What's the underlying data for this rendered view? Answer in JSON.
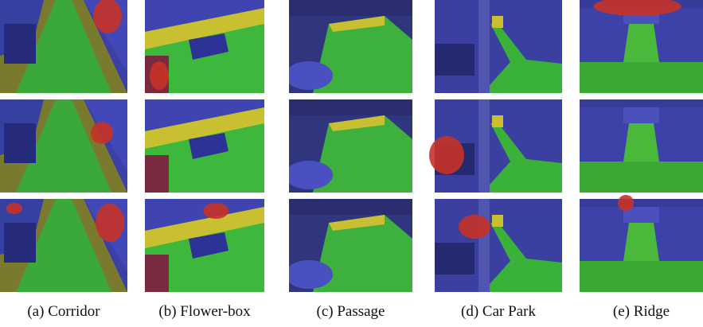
{
  "figure": {
    "captions": [
      "(a) Corridor",
      "(b) Flower-box",
      "(c) Passage",
      "(d) Car Park",
      "(e) Ridge"
    ]
  }
}
